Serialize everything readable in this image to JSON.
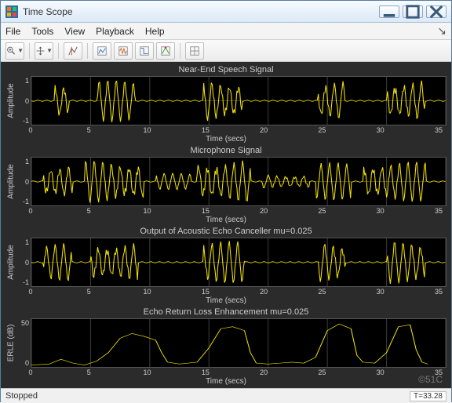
{
  "window": {
    "title": "Time Scope"
  },
  "menu": {
    "items": [
      "File",
      "Tools",
      "View",
      "Playback",
      "Help"
    ]
  },
  "status": {
    "state": "Stopped",
    "time": "T=33.28"
  },
  "watermark": "©51C",
  "colors": {
    "plot_bg": "#2b2b2b",
    "axes_bg": "#000000",
    "signal": "#f5e400",
    "grid": "#3a3a3a",
    "text": "#cccccc"
  },
  "x": {
    "label": "Time (secs)",
    "min": 0,
    "max": 35,
    "tick_step": 5,
    "ticks": [
      "0",
      "5",
      "10",
      "15",
      "20",
      "25",
      "30",
      "35"
    ]
  },
  "panes": [
    {
      "title": "Near-End Speech Signal",
      "ylabel": "Amplitude",
      "ylim": [
        -1,
        1
      ],
      "yticks": [
        "1",
        "0",
        "-1"
      ],
      "type": "waveform",
      "bursts": [
        {
          "start": 2.0,
          "end": 3.2,
          "amp": 0.9
        },
        {
          "start": 5.5,
          "end": 8.8,
          "amp": 1.0
        },
        {
          "start": 14.5,
          "end": 17.8,
          "amp": 1.0
        },
        {
          "start": 24.2,
          "end": 26.5,
          "amp": 0.95
        },
        {
          "start": 30.0,
          "end": 33.2,
          "amp": 1.0
        }
      ]
    },
    {
      "title": "Microphone Signal",
      "ylabel": "Amplitude",
      "ylim": [
        -1,
        1
      ],
      "yticks": [
        "1",
        "0",
        "-1"
      ],
      "type": "waveform",
      "bursts": [
        {
          "start": 1.0,
          "end": 3.5,
          "amp": 0.85
        },
        {
          "start": 4.5,
          "end": 9.5,
          "amp": 1.0
        },
        {
          "start": 10.5,
          "end": 13.5,
          "amp": 0.4
        },
        {
          "start": 14.0,
          "end": 18.5,
          "amp": 1.0
        },
        {
          "start": 19.5,
          "end": 23.5,
          "amp": 0.35
        },
        {
          "start": 24.0,
          "end": 27.0,
          "amp": 0.9
        },
        {
          "start": 28.0,
          "end": 33.3,
          "amp": 0.95
        }
      ]
    },
    {
      "title": "Output of Acoustic Echo Canceller mu=0.025",
      "ylabel": "Amplitude",
      "ylim": [
        -1,
        1
      ],
      "yticks": [
        "1",
        "0",
        "-1"
      ],
      "type": "waveform",
      "bursts": [
        {
          "start": 1.0,
          "end": 3.4,
          "amp": 0.9
        },
        {
          "start": 5.0,
          "end": 9.0,
          "amp": 0.95
        },
        {
          "start": 14.5,
          "end": 18.0,
          "amp": 1.0
        },
        {
          "start": 24.2,
          "end": 26.5,
          "amp": 0.95
        },
        {
          "start": 30.0,
          "end": 33.2,
          "amp": 1.0
        }
      ]
    },
    {
      "title": "Echo Return Loss Enhancement mu=0.025",
      "ylabel": "ERLE (dB)",
      "ylim": [
        0,
        50
      ],
      "yticks": [
        "50",
        "0"
      ],
      "type": "line",
      "points": [
        [
          0,
          2
        ],
        [
          1.5,
          3
        ],
        [
          2.5,
          8
        ],
        [
          3.5,
          4
        ],
        [
          4.5,
          2
        ],
        [
          5.5,
          6
        ],
        [
          6.5,
          15
        ],
        [
          7.5,
          30
        ],
        [
          8.5,
          35
        ],
        [
          9.5,
          32
        ],
        [
          10.5,
          28
        ],
        [
          11,
          15
        ],
        [
          11.5,
          5
        ],
        [
          12.5,
          3
        ],
        [
          14,
          5
        ],
        [
          15,
          20
        ],
        [
          16,
          40
        ],
        [
          17,
          42
        ],
        [
          18,
          38
        ],
        [
          18.5,
          15
        ],
        [
          19,
          4
        ],
        [
          20,
          3
        ],
        [
          21,
          4
        ],
        [
          22,
          5
        ],
        [
          23,
          4
        ],
        [
          24,
          10
        ],
        [
          25,
          38
        ],
        [
          26,
          45
        ],
        [
          27,
          40
        ],
        [
          27.5,
          12
        ],
        [
          28,
          5
        ],
        [
          29,
          4
        ],
        [
          30,
          15
        ],
        [
          31,
          42
        ],
        [
          32,
          44
        ],
        [
          32.5,
          18
        ],
        [
          33,
          5
        ],
        [
          33.5,
          3
        ]
      ]
    }
  ]
}
